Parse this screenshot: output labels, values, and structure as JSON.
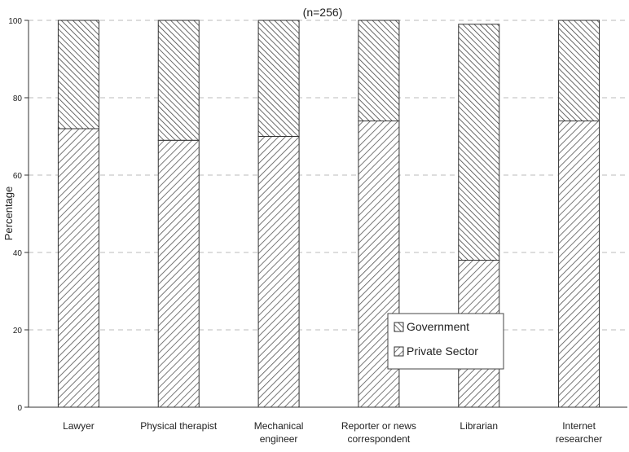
{
  "chart_data": {
    "type": "bar",
    "stacked": true,
    "title": "(n=256)",
    "xlabel": "",
    "ylabel": "Percentage",
    "ylim": [
      0,
      100
    ],
    "yticks": [
      0,
      20,
      40,
      60,
      80,
      100
    ],
    "grid": true,
    "legend_position": "bottom-right",
    "categories": [
      [
        "Lawyer"
      ],
      [
        "Physical therapist"
      ],
      [
        "Mechanical",
        "engineer"
      ],
      [
        "Reporter or news",
        "correspondent"
      ],
      [
        "Librarian"
      ],
      [
        "Internet",
        "researcher"
      ]
    ],
    "series": [
      {
        "name": "Private Sector",
        "values": [
          72,
          69,
          70,
          74,
          38,
          74
        ]
      },
      {
        "name": "Government",
        "values": [
          28,
          31,
          30,
          26,
          61,
          26
        ]
      }
    ],
    "legend_order": [
      "Government",
      "Private Sector"
    ],
    "colors": {
      "bar_stroke": "#333333",
      "hatch_line": "#555555",
      "grid": "#bbbbbb",
      "axis": "#333333"
    }
  }
}
